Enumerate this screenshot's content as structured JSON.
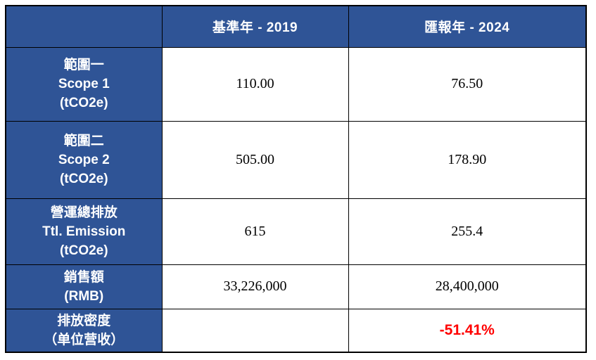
{
  "table": {
    "title_semantic": "emissions-comparison-table",
    "colors": {
      "cell_blue": "#2F5496",
      "border": "#000000",
      "value_text": "#000000",
      "highlight_red": "#FF0000",
      "background": "#FFFFFF"
    },
    "header": {
      "corner": "",
      "base_year": "基準年 - 2019",
      "report_year": "匯報年 - 2024"
    },
    "rows": [
      {
        "label_lines": [
          "範圍一",
          "Scope 1",
          "(tCO2e)"
        ],
        "v2019": "110.00",
        "v2024": "76.50"
      },
      {
        "label_lines": [
          "範圍二",
          "Scope 2",
          "(tCO2e)"
        ],
        "v2019": "505.00",
        "v2024": "178.90"
      },
      {
        "label_lines": [
          "營運總排放",
          "Ttl. Emission",
          "(tCO2e)"
        ],
        "v2019": "615",
        "v2024": "255.4"
      },
      {
        "label_lines": [
          "銷售額",
          "(RMB)"
        ],
        "v2019": "33,226,000",
        "v2024": "28,400,000"
      },
      {
        "label_lines": [
          "排放密度",
          "（单位营收）"
        ],
        "v2019": "",
        "v2024": "-51.41%"
      }
    ]
  }
}
